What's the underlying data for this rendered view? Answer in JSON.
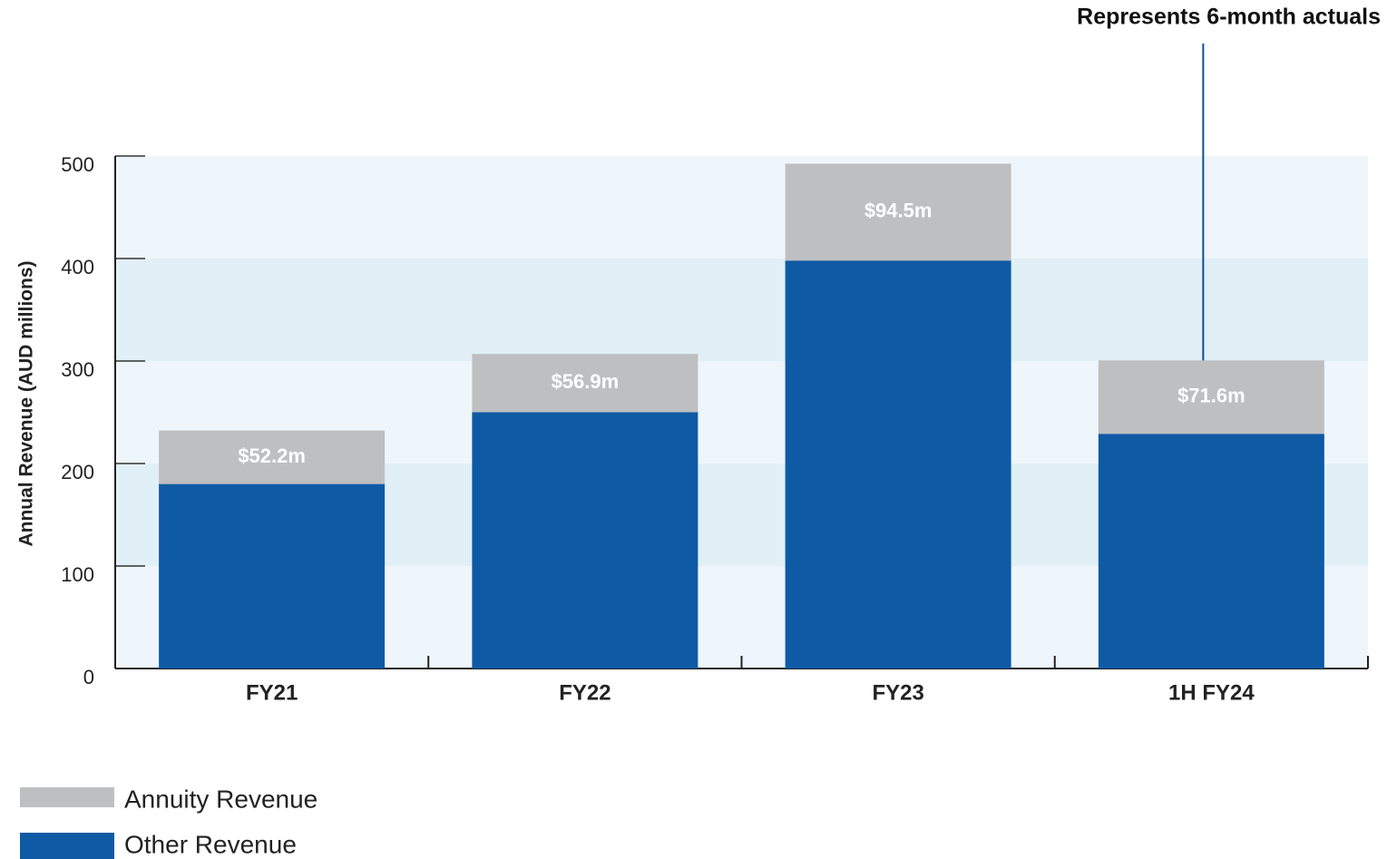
{
  "chart_data": {
    "type": "stacked_bar",
    "y_label": "Annual Revenue (AUD millions)",
    "annotation": "Represents 6-month actuals",
    "categories": [
      "FY21",
      "FY22",
      "FY23",
      "1H FY24"
    ],
    "series": [
      {
        "name": "Annuity Revenue",
        "color": "#bebfc1",
        "values": [
          52.2,
          56.9,
          94.5,
          71.6
        ],
        "value_labels": [
          "$52.2m",
          "$56.9m",
          "$94.5m",
          "$71.6m"
        ]
      },
      {
        "name": "Other Revenue",
        "color": "#0f5aa5",
        "values": [
          180,
          250,
          398,
          229
        ]
      }
    ],
    "ylim": [
      0,
      500
    ],
    "yticks": [
      0,
      100,
      200,
      300,
      400,
      500
    ],
    "band_colors": [
      "#eef6fb",
      "#e1eff7"
    ],
    "legend": "bottom-left"
  }
}
